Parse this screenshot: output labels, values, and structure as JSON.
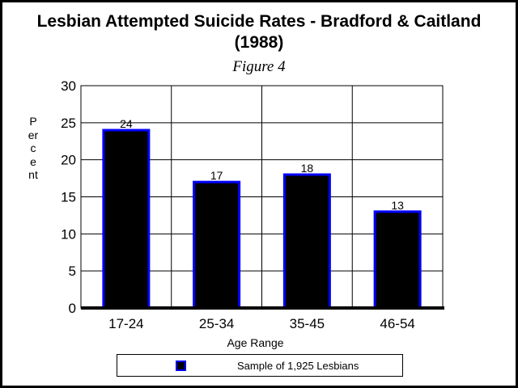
{
  "colors": {
    "bar_fill": "#000000",
    "bar_stroke": "#0000ff",
    "grid": "#000000",
    "background": "#ffffff",
    "border": "#000000"
  },
  "chart_data": {
    "type": "bar",
    "title": "Lesbian Attempted Suicide Rates - Bradford & Caitland (1988)",
    "title_lines": [
      "Lesbian Attempted Suicide Rates - Bradford & Caitland",
      "(1988)"
    ],
    "subtitle": "Figure 4",
    "xlabel": "Age Range",
    "ylabel": "Percent",
    "categories": [
      "17-24",
      "25-34",
      "35-45",
      "46-54"
    ],
    "series": [
      {
        "name": "Sample of 1,925 Lesbians",
        "values": [
          24,
          17,
          18,
          13
        ]
      }
    ],
    "ylim": [
      0,
      30
    ],
    "yticks": [
      0,
      5,
      10,
      15,
      20,
      25,
      30
    ],
    "grid": true,
    "data_labels": true,
    "legend_position": "bottom"
  }
}
